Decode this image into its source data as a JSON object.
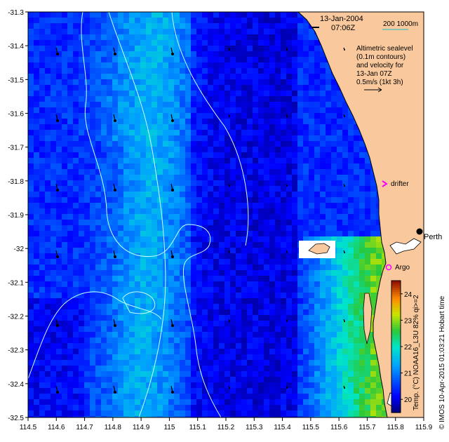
{
  "header": {
    "date": "13-Jan-2004",
    "time": "07:06Z",
    "depth_legend": "200  1000m"
  },
  "annotation": {
    "lines": [
      "Altimetric sealevel",
      "(0.1m contours)",
      "and velocity for",
      "13-Jan 07Z",
      "0.5m/s (1kt 3h)"
    ]
  },
  "labels": {
    "drifter": "drifter",
    "argo": "Argo",
    "perth": "Perth"
  },
  "colorbar": {
    "title": "Temp. (°C) NOAA16_L3U 82% qi>=2",
    "ticks": [
      "20",
      "21",
      "22",
      "23",
      "24"
    ],
    "min": 19.5,
    "max": 24.5
  },
  "credit": "© IMOS 10-Apr-2015 01:03:21 Hobart time",
  "axes": {
    "x_ticks": [
      "114.5",
      "114.6",
      "114.7",
      "114.8",
      "114.9",
      "115",
      "115.1",
      "115.2",
      "115.3",
      "115.4",
      "115.5",
      "115.6",
      "115.7",
      "115.8",
      "115.9"
    ],
    "y_ticks": [
      "-31.3",
      "-31.4",
      "-31.5",
      "-31.6",
      "-31.7",
      "-31.8",
      "-31.9",
      "-32",
      "-32.1",
      "-32.2",
      "-32.3",
      "-32.4",
      "-32.5"
    ],
    "lon_range": [
      114.5,
      115.9
    ],
    "lat_range": [
      -32.5,
      -31.3
    ]
  },
  "colors": {
    "land": "#f9c99d",
    "contour": "#c8ffff",
    "marker": "#ff00ff",
    "ruler": "#40c0c0"
  }
}
